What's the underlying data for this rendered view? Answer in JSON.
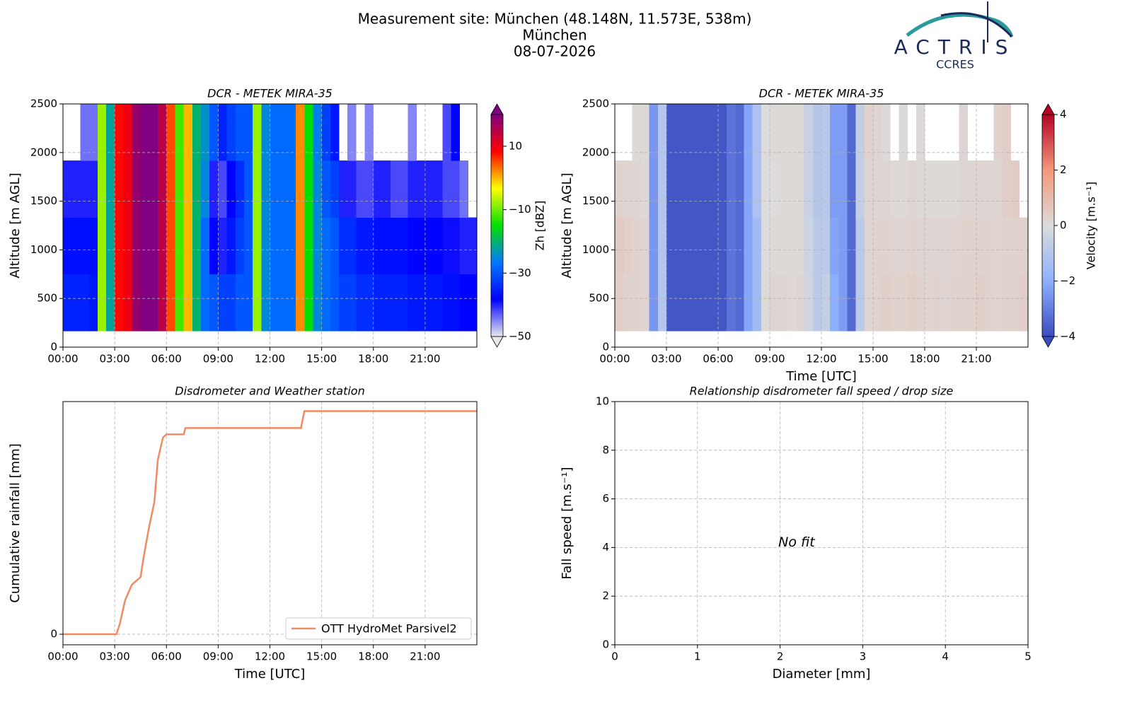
{
  "header": {
    "title": [
      "Measurement site: München (48.148N, 11.573E, 538m)",
      "München",
      "08-07-2026"
    ],
    "logo": "ACTRIS",
    "logo_sub": "CCRES"
  },
  "chart_data": [
    {
      "type": "heatmap",
      "title": "DCR - METEK MIRA-35",
      "ylabel": "Altitude [m AGL]",
      "clabel": "Zh [dBZ]",
      "xlim": [
        0,
        24
      ],
      "ylim": [
        0,
        2500
      ],
      "clim": [
        -50,
        20
      ],
      "grid": true,
      "cmap": [
        "#e8e8ee",
        "#0000ff",
        "#0078ff",
        "#00e000",
        "#ffff00",
        "#ff0000",
        "#800080"
      ],
      "xticks": [
        {
          "value": 0,
          "label": "00:00"
        },
        {
          "value": 3,
          "label": "03:00"
        },
        {
          "value": 6,
          "label": "06:00"
        },
        {
          "value": 9,
          "label": "09:00"
        },
        {
          "value": 12,
          "label": "12:00"
        },
        {
          "value": 15,
          "label": "15:00"
        },
        {
          "value": 18,
          "label": "18:00"
        },
        {
          "value": 21,
          "label": "21:00"
        }
      ],
      "yticks": [
        0,
        500,
        1000,
        1500,
        2000,
        2500
      ],
      "cticks": [
        {
          "value": -50,
          "label": "−50"
        },
        {
          "value": -30,
          "label": "−30"
        },
        {
          "value": -10,
          "label": "−10"
        },
        10
      ],
      "x_edges": [
        0,
        0.5,
        1,
        1.5,
        2,
        2.5,
        3,
        3.5,
        4,
        4.5,
        5,
        5.5,
        6,
        6.5,
        7,
        7.5,
        8,
        8.5,
        9,
        9.5,
        10,
        10.5,
        11,
        11.5,
        12,
        12.5,
        13,
        13.5,
        14,
        14.5,
        15,
        15.5,
        16,
        16.5,
        17,
        17.5,
        18,
        18.5,
        19,
        19.5,
        20,
        20.5,
        21,
        21.5,
        22,
        22.5,
        23,
        23.5,
        24
      ],
      "y_edges": [
        166,
        750,
        1333,
        1917,
        2500
      ],
      "z": [
        [
          -35,
          -35,
          -35,
          -36,
          -8,
          -22,
          8,
          10,
          18,
          20,
          20,
          15,
          5,
          -12,
          0,
          -20,
          -28,
          -30,
          -32,
          -32,
          -30,
          -30,
          -8,
          -25,
          -28,
          -28,
          -28,
          2,
          -15,
          -25,
          -28,
          -30,
          -32,
          -32,
          -34,
          -34,
          -35,
          -35,
          -35,
          -35,
          -36,
          -36,
          -36,
          -36,
          -37,
          -37,
          -38,
          -38
        ],
        [
          -37,
          -37,
          -37,
          -37,
          -8,
          -22,
          8,
          10,
          18,
          20,
          20,
          15,
          5,
          -12,
          0,
          -20,
          -28,
          -38,
          -40,
          -36,
          -32,
          -30,
          -8,
          -25,
          -28,
          -28,
          -28,
          2,
          -15,
          -25,
          -28,
          -30,
          -34,
          -34,
          -36,
          -36,
          -37,
          -37,
          -37,
          -37,
          -38,
          -38,
          -38,
          -38,
          -39,
          -39,
          -40,
          -40
        ],
        [
          -40,
          -40,
          -40,
          -40,
          -8,
          -22,
          8,
          10,
          18,
          20,
          20,
          15,
          5,
          -12,
          0,
          -20,
          -25,
          -40,
          -42,
          -38,
          -34,
          -30,
          -8,
          -25,
          -28,
          -28,
          -28,
          2,
          -15,
          -25,
          -30,
          -32,
          -40,
          -40,
          -42,
          -42,
          -40,
          -40,
          -42,
          -42,
          -40,
          -40,
          -40,
          -40,
          -42,
          -42,
          -44,
          null
        ],
        [
          null,
          null,
          -44,
          -44,
          -8,
          -22,
          8,
          10,
          18,
          20,
          20,
          15,
          5,
          -12,
          0,
          -20,
          -24,
          -30,
          -35,
          -32,
          -30,
          -30,
          -8,
          -25,
          -28,
          -28,
          -28,
          2,
          -15,
          -26,
          -32,
          -36,
          null,
          -45,
          null,
          -45,
          null,
          null,
          null,
          null,
          -45,
          null,
          null,
          null,
          -42,
          -38,
          null,
          null
        ]
      ]
    },
    {
      "type": "heatmap",
      "title": "DCR - METEK MIRA-35",
      "ylabel": "Altitude [m AGL]",
      "xlabel": "Time [UTC]",
      "clabel": "Velocity [m.s⁻¹]",
      "xlim": [
        0,
        24
      ],
      "ylim": [
        0,
        2500
      ],
      "clim": [
        -4,
        4
      ],
      "grid": true,
      "cmap": [
        "#3b4cc0",
        "#8db0fe",
        "#dcdcdc",
        "#f4987a",
        "#b40426"
      ],
      "xticks": [
        {
          "value": 0,
          "label": "00:00"
        },
        {
          "value": 3,
          "label": "03:00"
        },
        {
          "value": 6,
          "label": "06:00"
        },
        {
          "value": 9,
          "label": "09:00"
        },
        {
          "value": 12,
          "label": "12:00"
        },
        {
          "value": 15,
          "label": "15:00"
        },
        {
          "value": 18,
          "label": "18:00"
        },
        {
          "value": 21,
          "label": "21:00"
        }
      ],
      "yticks": [
        0,
        500,
        1000,
        1500,
        2000,
        2500
      ],
      "cticks": [
        {
          "value": -4,
          "label": "−4"
        },
        {
          "value": -2,
          "label": "−2"
        },
        0,
        2,
        4
      ],
      "x_edges": [
        0,
        0.5,
        1,
        1.5,
        2,
        2.5,
        3,
        3.5,
        4,
        4.5,
        5,
        5.5,
        6,
        6.5,
        7,
        7.5,
        8,
        8.5,
        9,
        9.5,
        10,
        10.5,
        11,
        11.5,
        12,
        12.5,
        13,
        13.5,
        14,
        14.5,
        15,
        15.5,
        16,
        16.5,
        17,
        17.5,
        18,
        18.5,
        19,
        19.5,
        20,
        20.5,
        21,
        21.5,
        22,
        22.5,
        23,
        23.5,
        24
      ],
      "y_edges": [
        166,
        750,
        1333,
        1917,
        2500
      ],
      "z": [
        [
          0.4,
          0.3,
          0.3,
          0.2,
          -2.5,
          -1,
          -3.8,
          -3.8,
          -3.8,
          -3.8,
          -3.8,
          -3.8,
          -3.8,
          -3.2,
          -3.4,
          -2.2,
          -1.5,
          0.1,
          0.2,
          0.2,
          0.1,
          0.2,
          -0.3,
          -0.8,
          -0.6,
          -2,
          -2.4,
          -3.4,
          -0.8,
          0.2,
          0.3,
          0.4,
          0.3,
          0.3,
          0.4,
          0.3,
          0.2,
          0.3,
          0.2,
          0.3,
          0.3,
          0.3,
          0.4,
          0.3,
          0.2,
          0.3,
          0.3,
          0.4
        ],
        [
          0.5,
          0.4,
          0.3,
          0.2,
          -2.5,
          -1,
          -3.8,
          -3.8,
          -3.8,
          -3.8,
          -3.8,
          -3.8,
          -3.8,
          -3.2,
          -3.4,
          -2.2,
          -1.5,
          0,
          0.1,
          0.1,
          0.1,
          0.1,
          -0.4,
          -0.8,
          -0.8,
          -2.2,
          -2.4,
          -3.4,
          -0.8,
          0.2,
          0.3,
          0.3,
          0.2,
          0.2,
          0.3,
          0.2,
          0.2,
          0.2,
          0.2,
          0.2,
          0.3,
          0.3,
          0.3,
          0.3,
          0.2,
          0.3,
          0.3,
          0.3
        ],
        [
          0.3,
          0.2,
          0.2,
          0.1,
          -2.5,
          -1,
          -3.8,
          -3.8,
          -3.8,
          -3.8,
          -3.8,
          -3.8,
          -3.8,
          -3.2,
          -3.4,
          -2.2,
          -1.2,
          0,
          0,
          0.1,
          0.1,
          0.1,
          -0.5,
          -1,
          -0.9,
          -2.4,
          -2.4,
          -3.4,
          -0.6,
          0.2,
          0.2,
          0.2,
          0.1,
          0.1,
          0.2,
          0.1,
          0.1,
          0.1,
          0.1,
          0.1,
          0.2,
          0.2,
          0.2,
          0.2,
          0.2,
          0.4,
          0.5,
          null
        ],
        [
          null,
          null,
          0.1,
          0.1,
          -2.5,
          -1,
          -3.8,
          -3.8,
          -3.8,
          -3.8,
          -3.8,
          -3.8,
          -3.8,
          -3.2,
          -3.4,
          -2.2,
          -1.2,
          0,
          0.1,
          0.1,
          0.1,
          0.1,
          -0.5,
          -1,
          -0.9,
          -2.4,
          -2.4,
          -3.4,
          -0.6,
          0.3,
          0.2,
          0.1,
          null,
          0.1,
          null,
          0.1,
          null,
          null,
          null,
          null,
          0.2,
          null,
          null,
          null,
          0.3,
          0.4,
          null,
          null
        ]
      ]
    },
    {
      "type": "line",
      "title": "Disdrometer and Weather station",
      "xlabel": "Time [UTC]",
      "ylabel": "Cumulative rainfall [mm]",
      "xlim": [
        0,
        24
      ],
      "ylim": [
        -1,
        22
      ],
      "grid": true,
      "legend": "lower right",
      "xticks": [
        {
          "value": 0,
          "label": "00:00"
        },
        {
          "value": 3,
          "label": "03:00"
        },
        {
          "value": 6,
          "label": "06:00"
        },
        {
          "value": 9,
          "label": "09:00"
        },
        {
          "value": 12,
          "label": "12:00"
        },
        {
          "value": 15,
          "label": "15:00"
        },
        {
          "value": 18,
          "label": "18:00"
        },
        {
          "value": 21,
          "label": "21:00"
        }
      ],
      "yticks": [
        0
      ],
      "x": [
        0,
        3.1,
        3.3,
        3.6,
        4.0,
        4.5,
        4.7,
        5.0,
        5.3,
        5.5,
        5.8,
        6.0,
        7.0,
        7.1,
        13.8,
        13.9,
        14.0,
        24
      ],
      "series": [
        {
          "name": "OTT HydroMet Parsivel2",
          "color": "#ef8a62",
          "values": [
            0,
            0,
            1,
            3.2,
            4.7,
            5.4,
            7.5,
            10.2,
            12.5,
            16.5,
            18.6,
            18.9,
            18.9,
            19.5,
            19.5,
            20.3,
            21.1,
            21.1
          ]
        }
      ]
    },
    {
      "type": "scatter",
      "title": "Relationship disdrometer fall speed / drop size",
      "xlabel": "Diameter [mm]",
      "ylabel": "Fall speed [m.s⁻¹]",
      "xlim": [
        0,
        5
      ],
      "ylim": [
        0,
        10
      ],
      "grid": true,
      "xticks": [
        0,
        1,
        2,
        3,
        4,
        5
      ],
      "yticks": [
        0,
        2,
        4,
        6,
        8,
        10
      ],
      "annotations": [
        {
          "text": "No fit",
          "x": 2.2,
          "y": 4.2
        }
      ]
    }
  ]
}
